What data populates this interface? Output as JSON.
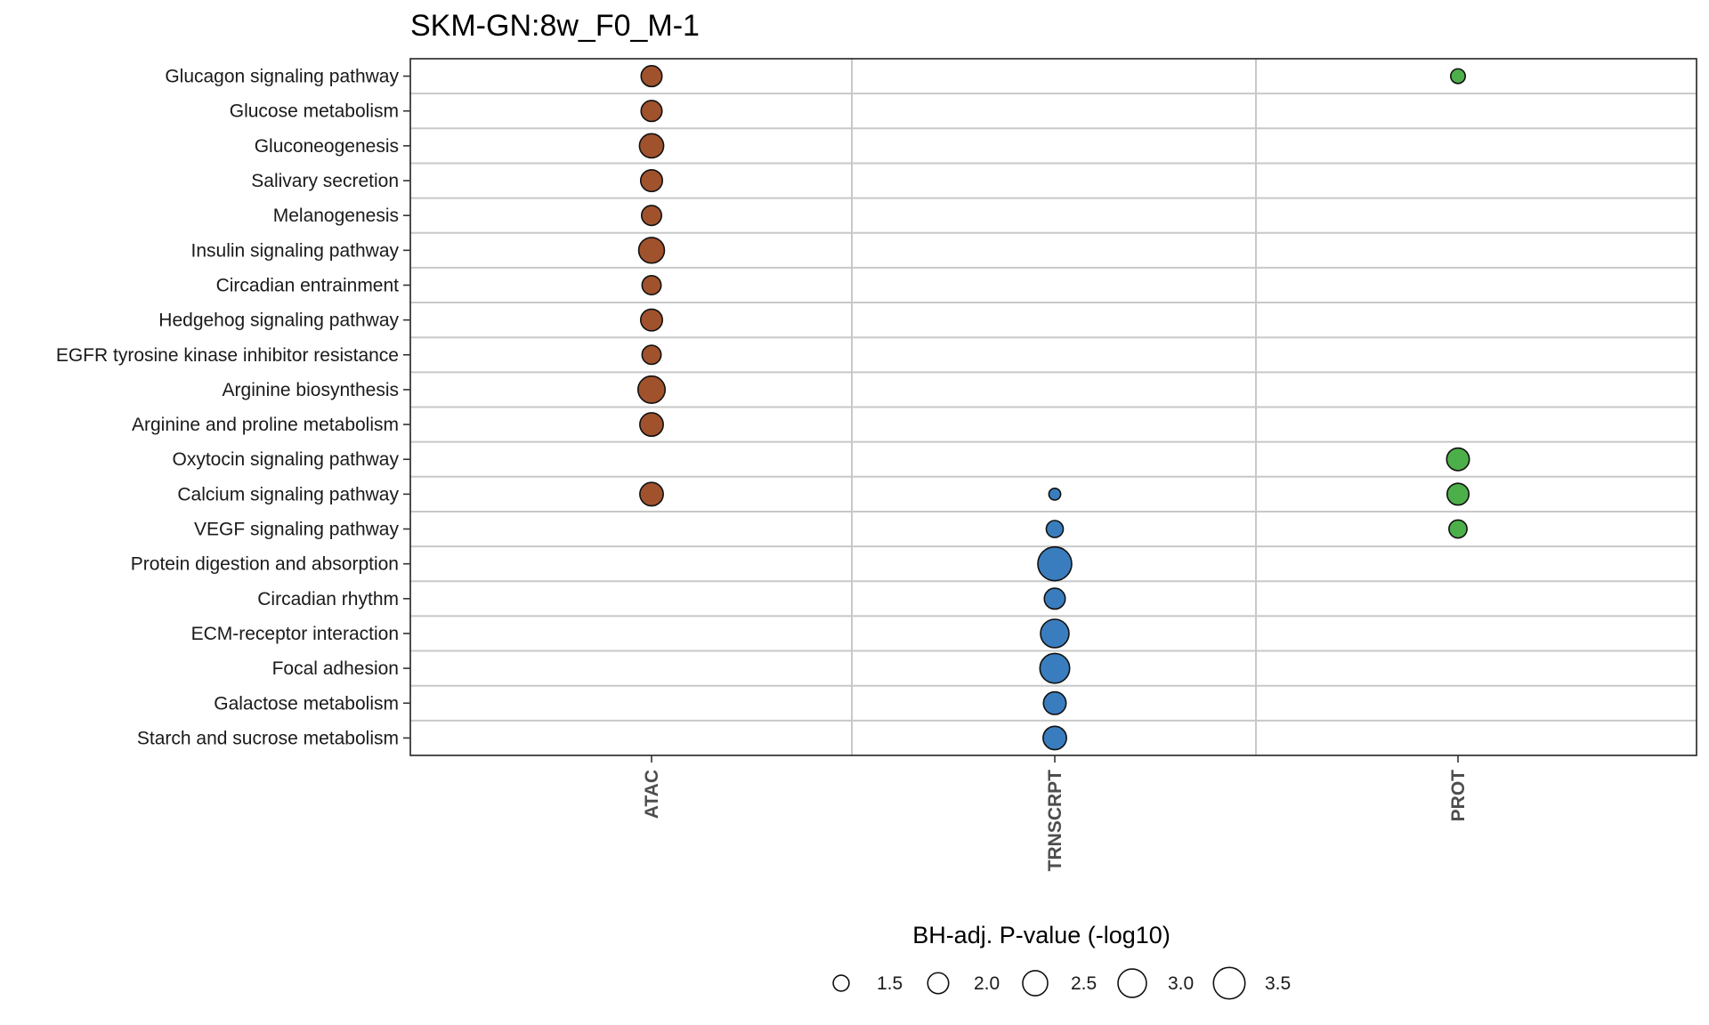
{
  "chart_data": {
    "type": "scatter",
    "title": "SKM-GN:8w_F0_M-1",
    "xlabel": "",
    "ylabel": "",
    "categories_x": [
      "ATAC",
      "TRNSCRPT",
      "PROT"
    ],
    "categories_y": [
      "Glucagon signaling pathway",
      "Glucose metabolism",
      "Gluconeogenesis",
      "Salivary secretion",
      "Melanogenesis",
      "Insulin signaling pathway",
      "Circadian entrainment",
      "Hedgehog signaling pathway",
      "EGFR tyrosine kinase inhibitor resistance",
      "Arginine biosynthesis",
      "Arginine and proline metabolism",
      "Oxytocin signaling pathway",
      "Calcium signaling pathway",
      "VEGF signaling pathway",
      "Protein digestion and absorption",
      "Circadian rhythm",
      "ECM-receptor interaction",
      "Focal adhesion",
      "Galactose metabolism",
      "Starch and sucrose metabolism"
    ],
    "series": [
      {
        "category": "ATAC",
        "color": "#A0522D",
        "points": [
          {
            "pathway": "Glucagon signaling pathway",
            "value": 2.0
          },
          {
            "pathway": "Glucose metabolism",
            "value": 2.0
          },
          {
            "pathway": "Gluconeogenesis",
            "value": 2.4
          },
          {
            "pathway": "Salivary secretion",
            "value": 2.1
          },
          {
            "pathway": "Melanogenesis",
            "value": 1.9
          },
          {
            "pathway": "Insulin signaling pathway",
            "value": 2.6
          },
          {
            "pathway": "Circadian entrainment",
            "value": 1.8
          },
          {
            "pathway": "Hedgehog signaling pathway",
            "value": 2.1
          },
          {
            "pathway": "EGFR tyrosine kinase inhibitor resistance",
            "value": 1.8
          },
          {
            "pathway": "Arginine biosynthesis",
            "value": 2.8
          },
          {
            "pathway": "Arginine and proline metabolism",
            "value": 2.3
          },
          {
            "pathway": "Calcium signaling pathway",
            "value": 2.3
          }
        ]
      },
      {
        "category": "TRNSCRPT",
        "color": "#3A7DBE",
        "points": [
          {
            "pathway": "Calcium signaling pathway",
            "value": 1.2
          },
          {
            "pathway": "VEGF signaling pathway",
            "value": 1.6
          },
          {
            "pathway": "Protein digestion and absorption",
            "value": 3.9
          },
          {
            "pathway": "Circadian rhythm",
            "value": 2.0
          },
          {
            "pathway": "ECM-receptor interaction",
            "value": 3.0
          },
          {
            "pathway": "Focal adhesion",
            "value": 3.2
          },
          {
            "pathway": "Galactose metabolism",
            "value": 2.2
          },
          {
            "pathway": "Starch and sucrose metabolism",
            "value": 2.3
          }
        ]
      },
      {
        "category": "PROT",
        "color": "#4DAF4A",
        "points": [
          {
            "pathway": "Glucagon signaling pathway",
            "value": 1.4
          },
          {
            "pathway": "Oxytocin signaling pathway",
            "value": 2.2
          },
          {
            "pathway": "Calcium signaling pathway",
            "value": 2.1
          },
          {
            "pathway": "VEGF signaling pathway",
            "value": 1.7
          }
        ]
      }
    ],
    "legend": {
      "title": "BH-adj. P-value (-log10)",
      "placement": "bottom",
      "labels": [
        "1.5",
        "2.0",
        "2.5",
        "3.0",
        "3.5"
      ],
      "values": [
        1.5,
        2.0,
        2.5,
        3.0,
        3.5
      ]
    },
    "size_range": [
      1.0,
      3.9
    ],
    "grid": true
  }
}
